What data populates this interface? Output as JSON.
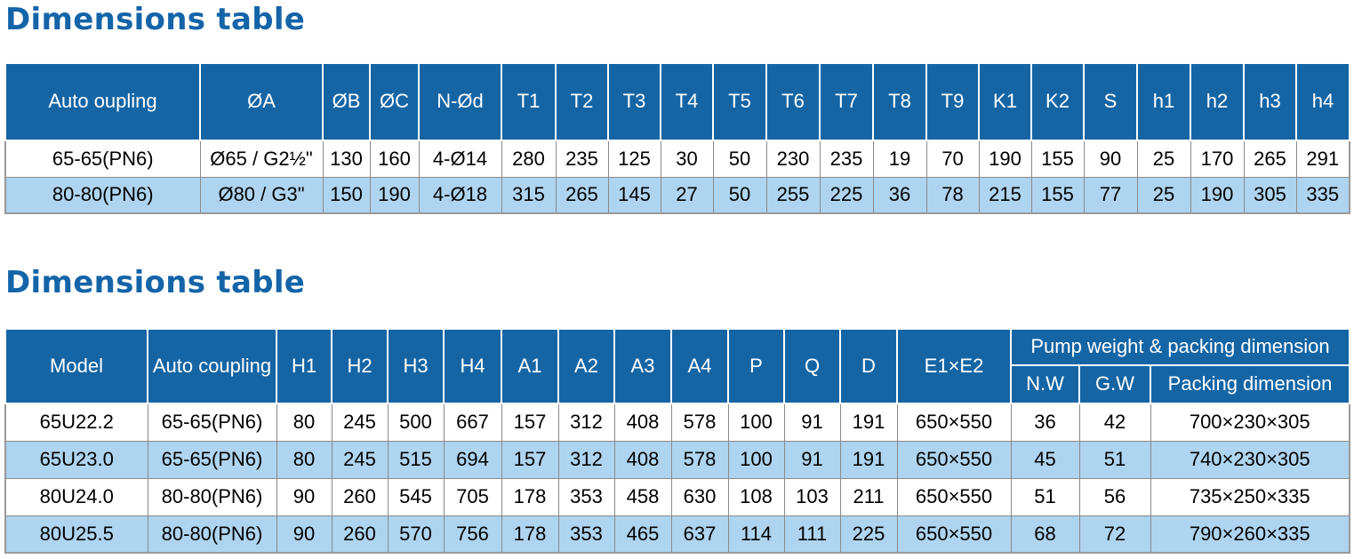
{
  "tables": [
    {
      "title": "Dimensions table",
      "columns": [
        "Auto oupling",
        "ØA",
        "ØB",
        "ØC",
        "N-Ød",
        "T1",
        "T2",
        "T3",
        "T4",
        "T5",
        "T6",
        "T7",
        "T8",
        "T9",
        "K1",
        "K2",
        "S",
        "h1",
        "h2",
        "h3",
        "h4"
      ],
      "rows": [
        [
          "65-65(PN6)",
          "Ø65 / G2½\"",
          "130",
          "160",
          "4-Ø14",
          "280",
          "235",
          "125",
          "30",
          "50",
          "230",
          "235",
          "19",
          "70",
          "190",
          "155",
          "90",
          "25",
          "170",
          "265",
          "291"
        ],
        [
          "80-80(PN6)",
          "Ø80 / G3\"",
          "150",
          "190",
          "4-Ø18",
          "315",
          "265",
          "145",
          "27",
          "50",
          "255",
          "225",
          "36",
          "78",
          "215",
          "155",
          "77",
          "25",
          "190",
          "305",
          "335"
        ]
      ]
    },
    {
      "title": "Dimensions table",
      "columns": [
        "Model",
        "Auto coupling",
        "H1",
        "H2",
        "H3",
        "H4",
        "A1",
        "A2",
        "A3",
        "A4",
        "P",
        "Q",
        "D",
        "E1×E2"
      ],
      "group": {
        "label": "Pump weight & packing dimension",
        "columns": [
          "N.W",
          "G.W",
          "Packing dimension"
        ]
      },
      "rows": [
        [
          "65U22.2",
          "65-65(PN6)",
          "80",
          "245",
          "500",
          "667",
          "157",
          "312",
          "408",
          "578",
          "100",
          "91",
          "191",
          "650×550",
          "36",
          "42",
          "700×230×305"
        ],
        [
          "65U23.0",
          "65-65(PN6)",
          "80",
          "245",
          "515",
          "694",
          "157",
          "312",
          "408",
          "578",
          "100",
          "91",
          "191",
          "650×550",
          "45",
          "51",
          "740×230×305"
        ],
        [
          "80U24.0",
          "80-80(PN6)",
          "90",
          "260",
          "545",
          "705",
          "178",
          "353",
          "458",
          "630",
          "108",
          "103",
          "211",
          "650×550",
          "51",
          "56",
          "735×250×335"
        ],
        [
          "80U25.5",
          "80-80(PN6)",
          "90",
          "260",
          "570",
          "756",
          "178",
          "353",
          "465",
          "637",
          "114",
          "111",
          "225",
          "650×550",
          "68",
          "72",
          "790×260×335"
        ]
      ]
    }
  ]
}
